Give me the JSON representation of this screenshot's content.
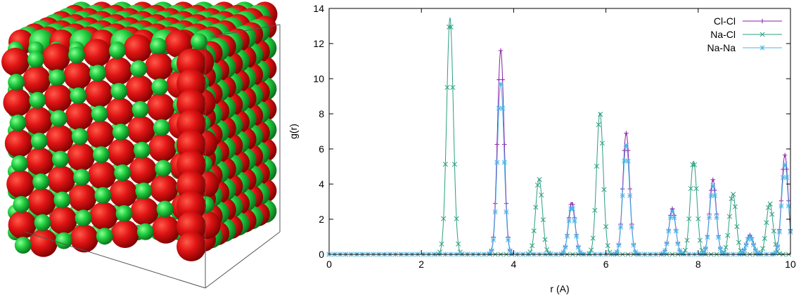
{
  "chart_data": {
    "type": "line",
    "title": "",
    "xlabel": "r (A)",
    "ylabel": "g(r)",
    "xlim": [
      0,
      10
    ],
    "ylim": [
      0,
      14
    ],
    "xticks": [
      0,
      2,
      4,
      6,
      8,
      10
    ],
    "yticks": [
      0,
      2,
      4,
      6,
      8,
      10,
      12,
      14
    ],
    "grid": false,
    "legend_position": "top-right",
    "series": [
      {
        "name": "Cl-Cl",
        "color": "#8b1fa8",
        "marker": "plus",
        "peaks": [
          {
            "r": 3.72,
            "height": 11.6
          },
          {
            "r": 5.26,
            "height": 2.95
          },
          {
            "r": 6.44,
            "height": 6.9
          },
          {
            "r": 7.44,
            "height": 2.6
          },
          {
            "r": 8.32,
            "height": 4.25
          },
          {
            "r": 9.12,
            "height": 1.1
          },
          {
            "r": 9.88,
            "height": 5.65
          }
        ]
      },
      {
        "name": "Na-Cl",
        "color": "#2a9f7f",
        "marker": "x",
        "peaks": [
          {
            "r": 2.62,
            "height": 13.45
          },
          {
            "r": 4.55,
            "height": 4.3
          },
          {
            "r": 5.87,
            "height": 8.05
          },
          {
            "r": 7.9,
            "height": 5.3
          },
          {
            "r": 8.75,
            "height": 3.45
          },
          {
            "r": 9.55,
            "height": 2.9
          }
        ]
      },
      {
        "name": "Na-Na",
        "color": "#4ab8e8",
        "marker": "star",
        "peaks": [
          {
            "r": 3.72,
            "height": 9.7
          },
          {
            "r": 5.26,
            "height": 2.7
          },
          {
            "r": 6.44,
            "height": 6.2
          },
          {
            "r": 7.44,
            "height": 2.45
          },
          {
            "r": 8.32,
            "height": 3.9
          },
          {
            "r": 9.12,
            "height": 1.0
          },
          {
            "r": 9.88,
            "height": 5.1
          }
        ]
      }
    ]
  },
  "crystal": {
    "colors": {
      "chloride": "#d40f0f",
      "sodium": "#1fce3a",
      "edge": "#555555"
    }
  }
}
